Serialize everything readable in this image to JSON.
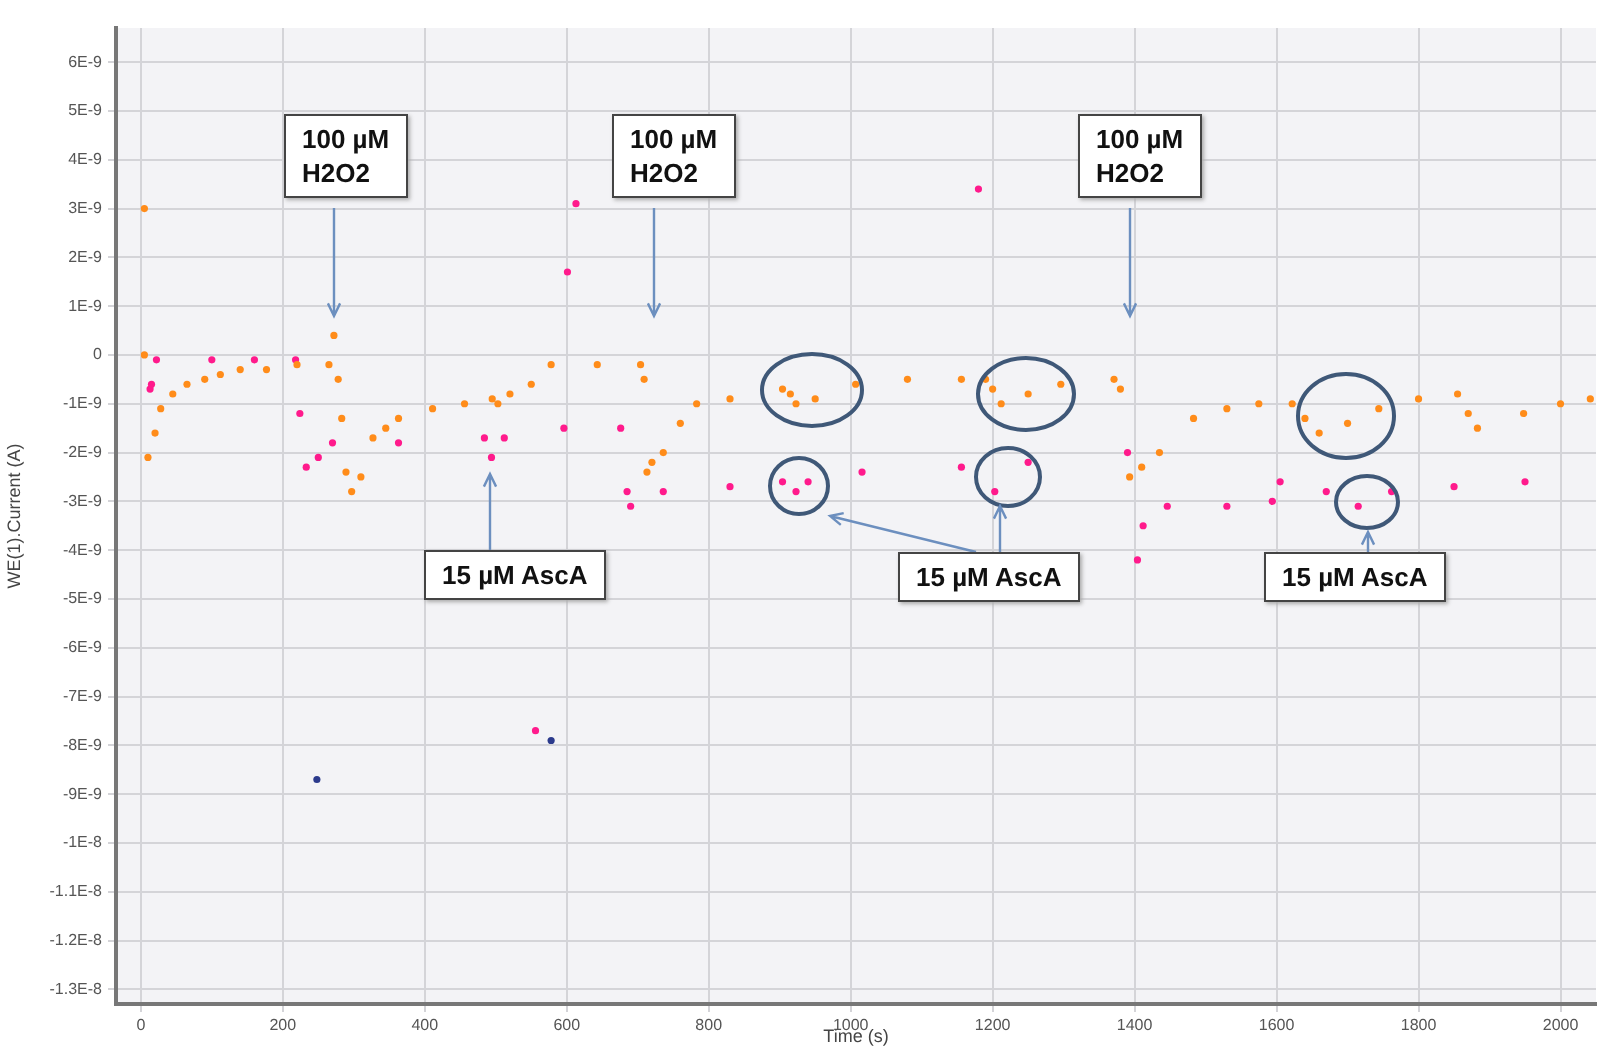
{
  "chart_data": {
    "type": "scatter",
    "xlabel": "Time (s)",
    "ylabel": "WE(1).Current (A)",
    "xlim": [
      -35,
      2050
    ],
    "xticks": [
      0,
      200,
      400,
      600,
      800,
      1000,
      1200,
      1400,
      1600,
      1800,
      2000
    ],
    "ylim": [
      -1.33e-08,
      6.7e-09
    ],
    "yticks": [
      {
        "value": 6e-09,
        "label": "6E-9"
      },
      {
        "value": 5e-09,
        "label": "5E-9"
      },
      {
        "value": 4e-09,
        "label": "4E-9"
      },
      {
        "value": 3e-09,
        "label": "3E-9"
      },
      {
        "value": 2e-09,
        "label": "2E-9"
      },
      {
        "value": 1e-09,
        "label": "1E-9"
      },
      {
        "value": 0,
        "label": "0"
      },
      {
        "value": -1e-09,
        "label": "-1E-9"
      },
      {
        "value": -2e-09,
        "label": "-2E-9"
      },
      {
        "value": -3e-09,
        "label": "-3E-9"
      },
      {
        "value": -4e-09,
        "label": "-4E-9"
      },
      {
        "value": -5e-09,
        "label": "-5E-9"
      },
      {
        "value": -6e-09,
        "label": "-6E-9"
      },
      {
        "value": -7e-09,
        "label": "-7E-9"
      },
      {
        "value": -8e-09,
        "label": "-8E-9"
      },
      {
        "value": -9e-09,
        "label": "-9E-9"
      },
      {
        "value": -1e-08,
        "label": "-1E-8"
      },
      {
        "value": -1.1e-08,
        "label": "-1.1E-8"
      },
      {
        "value": -1.2e-08,
        "label": "-1.2E-8"
      },
      {
        "value": -1.3e-08,
        "label": "-1.3E-8"
      }
    ],
    "grid": true,
    "legend": false,
    "marker": "circle",
    "series": [
      {
        "color": "#ff8c1a",
        "x": [
          5,
          5,
          10,
          20,
          28,
          45,
          65,
          90,
          112,
          140,
          177,
          220,
          265,
          272,
          278,
          283,
          289,
          297,
          310,
          327,
          345,
          363,
          411,
          456,
          495,
          503,
          520,
          550,
          578,
          643,
          704,
          709,
          713,
          720,
          736,
          760,
          783,
          830,
          904,
          915,
          923,
          950,
          1007,
          1080,
          1156,
          1190,
          1200,
          1212,
          1250,
          1296,
          1371,
          1380,
          1393,
          1410,
          1435,
          1483,
          1530,
          1575,
          1622,
          1640,
          1660,
          1700,
          1744,
          1800,
          1855,
          1870,
          1883,
          1948,
          2000,
          2042
        ],
        "values": [
          3e-09,
          0,
          -2.1e-09,
          -1.6e-09,
          -1.1e-09,
          -8e-10,
          -6e-10,
          -5e-10,
          -4e-10,
          -3e-10,
          -3e-10,
          -2e-10,
          -2e-10,
          4e-10,
          -5e-10,
          -1.3e-09,
          -2.4e-09,
          -2.8e-09,
          -2.5e-09,
          -1.7e-09,
          -1.5e-09,
          -1.3e-09,
          -1.1e-09,
          -1e-09,
          -9e-10,
          -1e-09,
          -8e-10,
          -6e-10,
          -2e-10,
          -2e-10,
          -2e-10,
          -5e-10,
          -2.4e-09,
          -2.2e-09,
          -2e-09,
          -1.4e-09,
          -1e-09,
          -9e-10,
          -7e-10,
          -8e-10,
          -1e-09,
          -9e-10,
          -6e-10,
          -5e-10,
          -5e-10,
          -5e-10,
          -7e-10,
          -1e-09,
          -8e-10,
          -6e-10,
          -5e-10,
          -7e-10,
          -2.5e-09,
          -2.3e-09,
          -2e-09,
          -1.3e-09,
          -1.1e-09,
          -1e-09,
          -1e-09,
          -1.3e-09,
          -1.6e-09,
          -1.4e-09,
          -1.1e-09,
          -9e-10,
          -8e-10,
          -1.2e-09,
          -1.5e-09,
          -1.2e-09,
          -1e-09,
          -9e-10
        ]
      },
      {
        "color": "#ff1a8c",
        "x": [
          13,
          15,
          22,
          100,
          160,
          218,
          224,
          233,
          250,
          270,
          363,
          484,
          494,
          512,
          556,
          596,
          601,
          613,
          676,
          685,
          690,
          736,
          830,
          904,
          923,
          940,
          1016,
          1156,
          1180,
          1203,
          1250,
          1390,
          1404,
          1412,
          1446,
          1530,
          1594,
          1605,
          1670,
          1715,
          1762,
          1850,
          1950
        ],
        "values": [
          -7e-10,
          -6e-10,
          -1e-10,
          -1e-10,
          -1e-10,
          -1e-10,
          -1.2e-09,
          -2.3e-09,
          -2.1e-09,
          -1.8e-09,
          -1.8e-09,
          -1.7e-09,
          -2.1e-09,
          -1.7e-09,
          -7.7e-09,
          -1.5e-09,
          1.7e-09,
          3.1e-09,
          -1.5e-09,
          -2.8e-09,
          -3.1e-09,
          -2.8e-09,
          -2.7e-09,
          -2.6e-09,
          -2.8e-09,
          -2.6e-09,
          -2.4e-09,
          -2.3e-09,
          3.4e-09,
          -2.8e-09,
          -2.2e-09,
          -2e-09,
          -4.2e-09,
          -3.5e-09,
          -3.1e-09,
          -3.1e-09,
          -3e-09,
          -2.6e-09,
          -2.8e-09,
          -3.1e-09,
          -2.8e-09,
          -2.7e-09,
          -2.6e-09
        ]
      },
      {
        "color": "#2b3a8c",
        "x": [
          248,
          578
        ],
        "values": [
          -8.7e-09,
          -7.9e-09
        ]
      }
    ],
    "annotations": [
      "100 µM\nH2O2",
      "100 µM\nH2O2",
      "100 µM\nH2O2",
      "15 µM AscA",
      "15 µM AscA",
      "15 µM AscA"
    ]
  }
}
